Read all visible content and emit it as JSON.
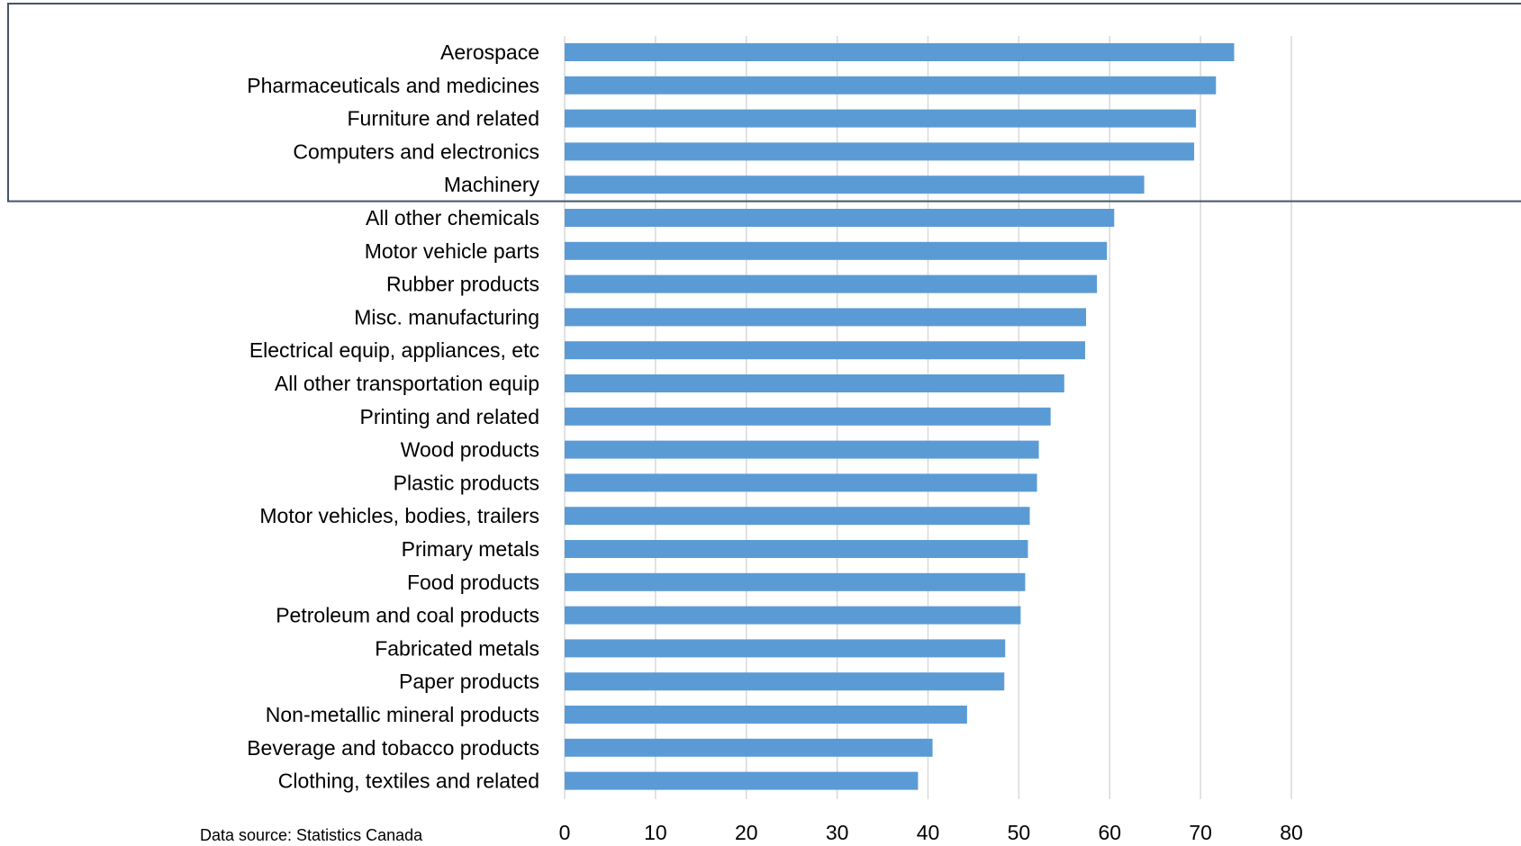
{
  "chart_data": {
    "type": "bar",
    "orientation": "horizontal",
    "categories": [
      "Aerospace",
      "Pharmaceuticals and medicines",
      "Furniture and related",
      "Computers and electronics",
      "Machinery",
      "All other chemicals",
      "Motor vehicle parts",
      "Rubber products",
      "Misc. manufacturing",
      "Electrical equip, appliances, etc",
      "All other transportation equip",
      "Printing and related",
      "Wood products",
      "Plastic products",
      "Motor vehicles, bodies, trailers",
      "Primary metals",
      "Food products",
      "Petroleum and coal products",
      "Fabricated metals",
      "Paper products",
      "Non-metallic mineral products",
      "Beverage and tobacco products",
      "Clothing, textiles and related"
    ],
    "values": [
      73.7,
      71.7,
      69.5,
      69.3,
      63.8,
      60.5,
      59.7,
      58.6,
      57.4,
      57.3,
      55.0,
      53.5,
      52.2,
      52.0,
      51.2,
      51.0,
      50.7,
      50.2,
      48.5,
      48.4,
      44.3,
      40.5,
      38.9
    ],
    "xlim": [
      0,
      80
    ],
    "xticks": [
      "0",
      "10",
      "20",
      "30",
      "40",
      "50",
      "60",
      "70",
      "80"
    ],
    "grid": "vertical",
    "bar_color": "#5b9bd5",
    "grid_color": "#d9d9d9",
    "highlight_box_color": "#44546a",
    "highlighted_categories": [
      "Aerospace",
      "Pharmaceuticals and medicines",
      "Furniture and related",
      "Computers and electronics",
      "Machinery"
    ],
    "source_note": "Data source: Statistics Canada"
  }
}
